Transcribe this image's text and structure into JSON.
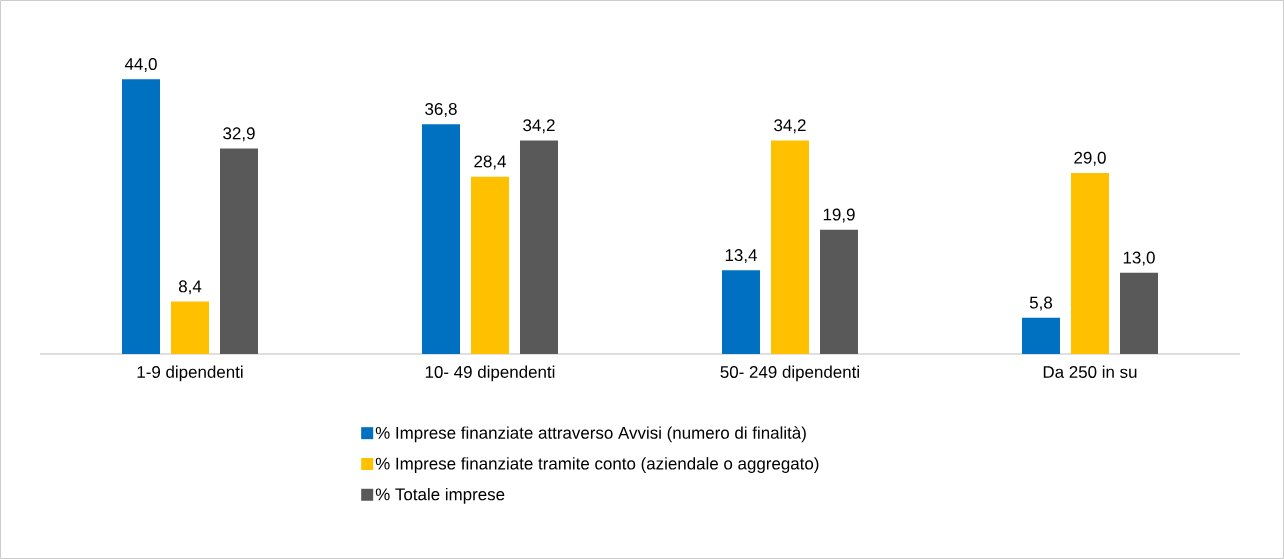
{
  "chart_data": {
    "type": "bar",
    "categories": [
      "1-9 dipendenti",
      "10- 49 dipendenti",
      "50- 249 dipendenti",
      "Da 250 in su"
    ],
    "series": [
      {
        "name": "% Imprese finanziate attraverso Avvisi (numero di finalità)",
        "color": "#0070c0",
        "values": [
          44.0,
          36.8,
          13.4,
          5.8
        ],
        "value_labels": [
          "44,0",
          "36,8",
          "13,4",
          "5,8"
        ]
      },
      {
        "name": "% Imprese finanziate tramite conto (aziendale o aggregato)",
        "color": "#ffc000",
        "values": [
          8.4,
          28.4,
          34.2,
          29.0
        ],
        "value_labels": [
          "8,4",
          "28,4",
          "34,2",
          "29,0"
        ]
      },
      {
        "name": "% Totale imprese",
        "color": "#595959",
        "values": [
          32.9,
          34.2,
          19.9,
          13.0
        ],
        "value_labels": [
          "32,9",
          "34,2",
          "19,9",
          "13,0"
        ]
      }
    ],
    "legend": "bottom"
  }
}
